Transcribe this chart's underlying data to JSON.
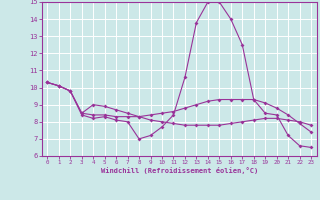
{
  "xlabel": "Windchill (Refroidissement éolien,°C)",
  "xlim": [
    -0.5,
    23.5
  ],
  "ylim": [
    6,
    15
  ],
  "xticks": [
    0,
    1,
    2,
    3,
    4,
    5,
    6,
    7,
    8,
    9,
    10,
    11,
    12,
    13,
    14,
    15,
    16,
    17,
    18,
    19,
    20,
    21,
    22,
    23
  ],
  "yticks": [
    6,
    7,
    8,
    9,
    10,
    11,
    12,
    13,
    14,
    15
  ],
  "background_color": "#cce8e8",
  "grid_color": "#b0d8d8",
  "line_color": "#993399",
  "line1_y": [
    10.3,
    10.1,
    9.8,
    8.4,
    8.2,
    8.3,
    8.1,
    8.0,
    7.0,
    7.2,
    7.7,
    8.4,
    10.6,
    13.8,
    15.0,
    15.0,
    14.0,
    12.5,
    9.3,
    8.5,
    8.4,
    7.2,
    6.6,
    6.5
  ],
  "line2_y": [
    10.3,
    10.1,
    9.8,
    8.5,
    8.4,
    8.4,
    8.3,
    8.3,
    8.3,
    8.4,
    8.5,
    8.6,
    8.8,
    9.0,
    9.2,
    9.3,
    9.3,
    9.3,
    9.3,
    9.1,
    8.8,
    8.4,
    7.9,
    7.4
  ],
  "line3_y": [
    10.3,
    10.1,
    9.8,
    8.5,
    9.0,
    8.9,
    8.7,
    8.5,
    8.3,
    8.1,
    8.0,
    7.9,
    7.8,
    7.8,
    7.8,
    7.8,
    7.9,
    8.0,
    8.1,
    8.2,
    8.2,
    8.1,
    8.0,
    7.8
  ]
}
